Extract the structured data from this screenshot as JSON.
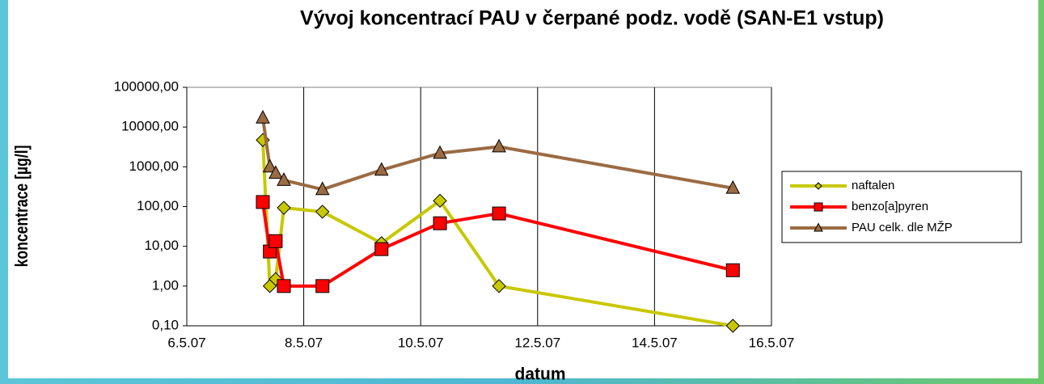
{
  "chart_data": {
    "type": "line",
    "title": "Vývoj koncentrací PAU v čerpané podz. vodě (SAN-E1 vstup)",
    "x_label": "datum",
    "y_label": "koncentrace [µg/l]",
    "log_y": true,
    "x": [
      7.3,
      7.42,
      7.52,
      7.66,
      8.32,
      9.33,
      10.33,
      11.34,
      15.34
    ],
    "series": [
      {
        "name": "naftalen",
        "color": "#c8c800",
        "marker": "diamond",
        "values": [
          4700,
          1,
          1.5,
          93,
          74,
          12,
          140,
          1,
          0.1
        ]
      },
      {
        "name": "benzo[a]pyren",
        "color": "#ff0000",
        "marker": "square",
        "values": [
          130,
          7.4,
          13.5,
          1,
          1,
          8.5,
          38,
          67,
          2.5
        ]
      },
      {
        "name": "PAU celk. dle MŽP",
        "color": "#9b6b43",
        "marker": "triangle",
        "values": [
          17000,
          1000,
          690,
          460,
          270,
          830,
          2200,
          3200,
          290
        ]
      }
    ],
    "xlim": [
      6,
      16
    ],
    "xticks": [
      {
        "value": 6,
        "label": "6.5.07"
      },
      {
        "value": 8,
        "label": "8.5.07"
      },
      {
        "value": 10,
        "label": "10.5.07"
      },
      {
        "value": 12,
        "label": "12.5.07"
      },
      {
        "value": 14,
        "label": "14.5.07"
      },
      {
        "value": 16,
        "label": "16.5.07"
      }
    ],
    "ylim": [
      0.1,
      100000
    ],
    "yticks": [
      {
        "value": 0.1,
        "label": "0,10"
      },
      {
        "value": 1,
        "label": "1,00"
      },
      {
        "value": 10,
        "label": "10,00"
      },
      {
        "value": 100,
        "label": "100,00"
      },
      {
        "value": 1000,
        "label": "1000,00"
      },
      {
        "value": 10000,
        "label": "10000,00"
      },
      {
        "value": 100000,
        "label": "100000,00"
      }
    ],
    "grid": "x",
    "legend": "right"
  }
}
